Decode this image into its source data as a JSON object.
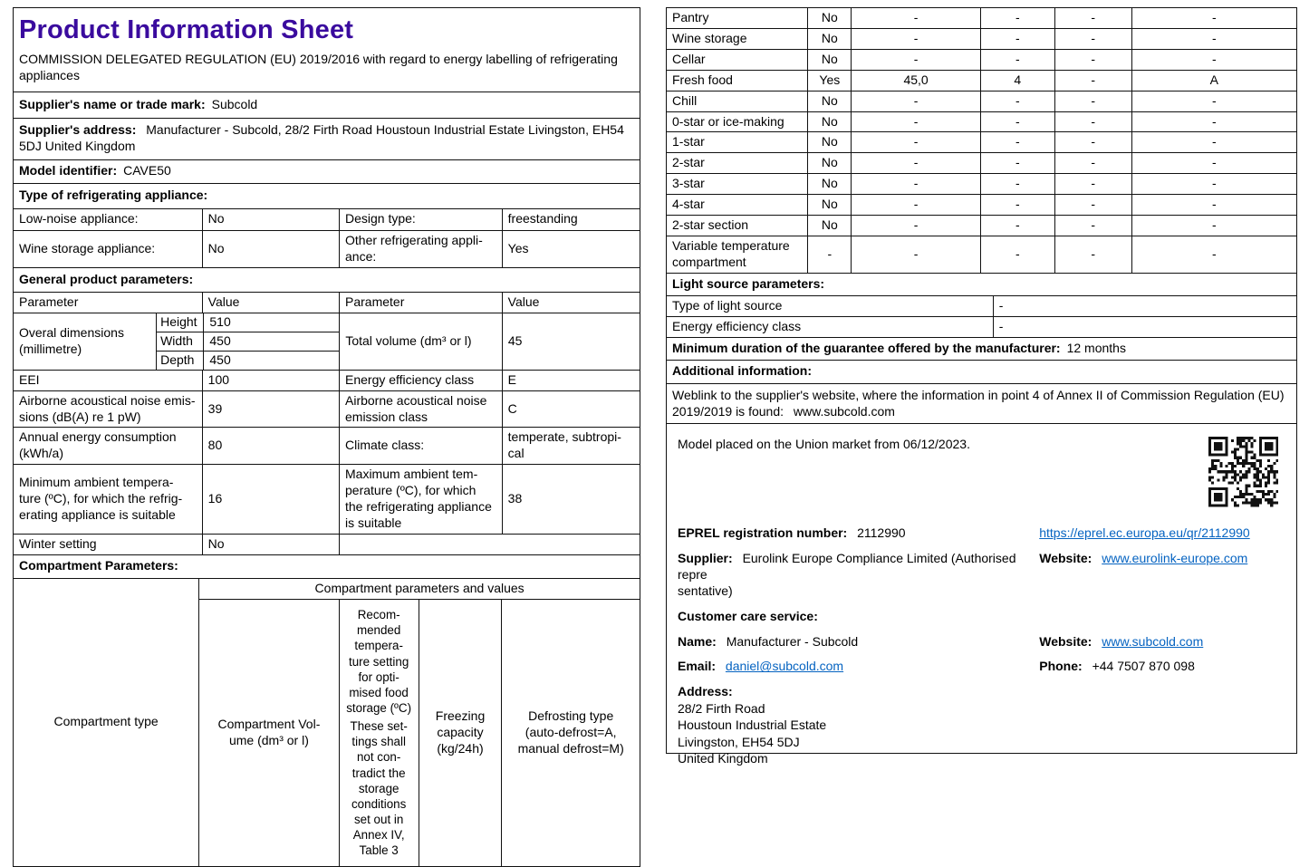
{
  "colors": {
    "title": "#3A0B9E",
    "link": "#0563C1"
  },
  "header": {
    "title": "Product Information Sheet",
    "regulation": "COMMISSION DELEGATED REGULATION (EU) 2019/2016 with regard to energy labelling of refrigerating appliances"
  },
  "supplier_name": {
    "label": "Supplier's name or trade mark:",
    "value": "Subcold"
  },
  "supplier_address": {
    "label": "Supplier's address:",
    "value": "Manufacturer - Subcold, 28/2 Firth Road Houstoun Industrial Estate Livingston, EH54 5DJ United Kingdom"
  },
  "model_identifier": {
    "label": "Model identifier:",
    "value": "CAVE50"
  },
  "type_section": {
    "header": "Type of refrigerating appliance:",
    "row1": {
      "c1": "Low-noise appliance:",
      "c2": "No",
      "c3": "Design type:",
      "c4": "freestanding"
    },
    "row2": {
      "c1": "Wine storage appliance:",
      "c2": "No",
      "c3": "Other refrigerating appli-\nance:",
      "c4": "Yes"
    }
  },
  "general": {
    "header": "General product parameters:",
    "col_headers": {
      "p1": "Parameter",
      "v1": "Value",
      "p2": "Parameter",
      "v2": "Value"
    },
    "dims_label": "Overal dimensions\n(millimetre)",
    "dims": [
      {
        "k": "Height",
        "v": "510"
      },
      {
        "k": "Width",
        "v": "450"
      },
      {
        "k": "Depth",
        "v": "450"
      }
    ],
    "total_volume": {
      "label": "Total volume (dm³ or l)",
      "value": "45"
    },
    "rows": [
      {
        "c1": "EEI",
        "c2": "100",
        "c3": "Energy efficiency class",
        "c4": "E"
      },
      {
        "c1": "Airborne acoustical noise emis-\nsions (dB(A) re 1 pW)",
        "c2": "39",
        "c3": "Airborne acoustical noise\nemission class",
        "c4": "C"
      },
      {
        "c1": "Annual energy consumption\n(kWh/a)",
        "c2": "80",
        "c3": "Climate class:",
        "c4": "temperate, subtropi-\ncal"
      },
      {
        "c1": "Minimum ambient tempera-\nture (ºC), for which the refrig-\nerating appliance is suitable",
        "c2": "16",
        "c3": "Maximum ambient tem-\nperature (ºC), for which\nthe refrigerating appliance\nis suitable",
        "c4": "38"
      }
    ],
    "winter": {
      "label": "Winter setting",
      "value": "No"
    }
  },
  "compartment": {
    "header": "Compartment Parameters:",
    "corner": "Compartment type",
    "group_header": "Compartment parameters and values",
    "col_volume": "Compartment Vol-\nume (dm³ or l)",
    "col_temp_p1": "Recom-\nmended\ntempera-\nture setting\nfor opti-\nmised food\nstorage (ºC)",
    "col_temp_p2": "These set-\ntings shall\nnot con-\ntradict the\nstorage\nconditions\nset out in\nAnnex IV,\nTable 3",
    "col_freezing": "Freezing\ncapacity\n(kg/24h)",
    "col_defrost": "Defrosting type\n(auto-defrost=A,\nmanual defrost=M)"
  },
  "compartment_values": {
    "rows": [
      [
        "Pantry",
        "No",
        "-",
        "-",
        "-",
        "-"
      ],
      [
        "Wine storage",
        "No",
        "-",
        "-",
        "-",
        "-"
      ],
      [
        "Cellar",
        "No",
        "-",
        "-",
        "-",
        "-"
      ],
      [
        "Fresh food",
        "Yes",
        "45,0",
        "4",
        "-",
        "A"
      ],
      [
        "Chill",
        "No",
        "-",
        "-",
        "-",
        "-"
      ],
      [
        "0-star or ice-making",
        "No",
        "-",
        "-",
        "-",
        "-"
      ],
      [
        "1-star",
        "No",
        "-",
        "-",
        "-",
        "-"
      ],
      [
        "2-star",
        "No",
        "-",
        "-",
        "-",
        "-"
      ],
      [
        "3-star",
        "No",
        "-",
        "-",
        "-",
        "-"
      ],
      [
        "4-star",
        "No",
        "-",
        "-",
        "-",
        "-"
      ],
      [
        "2-star section",
        "No",
        "-",
        "-",
        "-",
        "-"
      ],
      [
        "Variable temperature compartment",
        "-",
        "-",
        "-",
        "-",
        "-"
      ]
    ]
  },
  "light": {
    "header": "Light source parameters:",
    "rows": [
      {
        "label": "Type of light source",
        "value": "-"
      },
      {
        "label": "Energy efficiency class",
        "value": "-"
      }
    ]
  },
  "guarantee": {
    "label": "Minimum duration of the guarantee offered by the manufacturer:",
    "value": "12 months"
  },
  "additional": {
    "header": "Additional information:",
    "weblink_text": "Weblink to the supplier's website, where the information in point 4 of Annex II of Commission Regulation (EU) 2019/2019 is found:",
    "weblink_value": "www.subcold.com"
  },
  "info_box": {
    "market_statement": "Model placed on the Union market from 06/12/2023.",
    "eprel": {
      "label": "EPREL registration number:",
      "value": "2112990",
      "link": "https://eprel.ec.europa.eu/qr/2112990"
    },
    "supplier": {
      "label": "Supplier:",
      "value": "Eurolink Europe Compliance Limited (Authorised repre\nsentative)"
    },
    "website1": {
      "label": "Website:",
      "value": "www.eurolink-europe.com"
    },
    "customer_care_header": "Customer care service:",
    "name": {
      "label": "Name:",
      "value": "Manufacturer - Subcold"
    },
    "website2": {
      "label": "Website:",
      "value": "www.subcold.com"
    },
    "email": {
      "label": "Email:",
      "value": "daniel@subcold.com"
    },
    "phone": {
      "label": "Phone:",
      "value": "+44 7507 870 098"
    },
    "address": {
      "label": "Address:",
      "lines": "28/2 Firth Road\nHoustoun Industrial Estate\nLivingston, EH54 5DJ\nUnited Kingdom"
    }
  }
}
